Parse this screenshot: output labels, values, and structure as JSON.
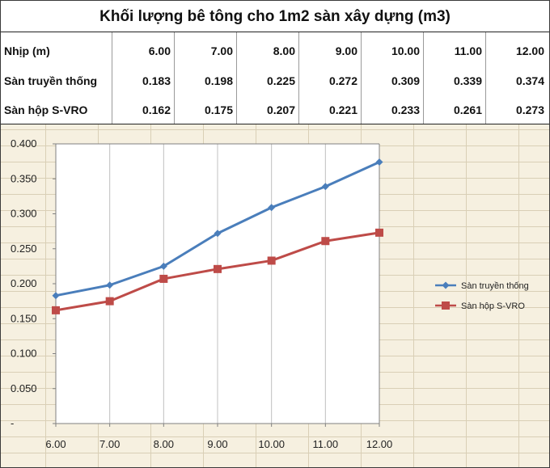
{
  "table": {
    "title": "Khối lượng bê tông cho 1m2 sàn xây dựng (m3)",
    "rows": [
      {
        "label": "Nhịp (m)",
        "values": [
          "6.00",
          "7.00",
          "8.00",
          "9.00",
          "10.00",
          "11.00",
          "12.00"
        ]
      },
      {
        "label": "Sàn truyền thống",
        "values": [
          "0.183",
          "0.198",
          "0.225",
          "0.272",
          "0.309",
          "0.339",
          "0.374"
        ]
      },
      {
        "label": "Sàn hộp S-VRO",
        "values": [
          "0.162",
          "0.175",
          "0.207",
          "0.221",
          "0.233",
          "0.261",
          "0.273"
        ]
      }
    ]
  },
  "chart_data": {
    "type": "line",
    "title": "",
    "xlabel": "",
    "ylabel": "",
    "categories": [
      "6.00",
      "7.00",
      "8.00",
      "9.00",
      "10.00",
      "11.00",
      "12.00"
    ],
    "series": [
      {
        "name": "Sàn truyền thống",
        "values": [
          0.183,
          0.198,
          0.225,
          0.272,
          0.309,
          0.339,
          0.374
        ],
        "color": "#4a7ebb",
        "marker": "diamond"
      },
      {
        "name": "Sàn hộp S-VRO",
        "values": [
          0.162,
          0.175,
          0.207,
          0.221,
          0.233,
          0.261,
          0.273
        ],
        "color": "#be4b48",
        "marker": "square"
      }
    ],
    "ylim": [
      0,
      0.4
    ],
    "y_ticks": [
      "0.400",
      "0.350",
      "0.300",
      "0.250",
      "0.200",
      "0.150",
      "0.100",
      "0.050",
      "-"
    ],
    "y_tick_values": [
      0.4,
      0.35,
      0.3,
      0.25,
      0.2,
      0.15,
      0.1,
      0.05,
      0
    ],
    "grid": true,
    "legend": "right"
  },
  "colors": {
    "chart_background": "#f6f0e0",
    "plot_background": "#ffffff",
    "gridline": "#c0c0c0"
  }
}
